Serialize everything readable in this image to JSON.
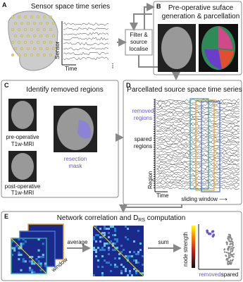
{
  "panel_a": {
    "label": "A",
    "title": "Sensor space time series",
    "y_axis": "Sensor",
    "x_axis": "Time"
  },
  "panel_b": {
    "label": "B",
    "title": [
      "Pre-operative suface",
      "generation & parcellation"
    ]
  },
  "filter_box": [
    "Filter &",
    "source",
    "localise"
  ],
  "panel_c": {
    "label": "C",
    "title": "Identify removed regions",
    "pre_label": [
      "pre-operative",
      "T1w-MRI"
    ],
    "post_label": [
      "post-operative",
      "T1w-MRI"
    ],
    "mask_label": [
      "resection",
      "mask"
    ]
  },
  "panel_d": {
    "label": "D",
    "title": "Parcellated source space time series",
    "removed": [
      "removed",
      "regions"
    ],
    "spared": [
      "spared",
      "regions"
    ],
    "y_axis": "Region",
    "x_axis": "Time",
    "window": "sliding window ⟶"
  },
  "panel_e": {
    "label": "E",
    "title": {
      "main": "Network correlation and D",
      "sub": "RS",
      "rest": " computation"
    },
    "average": "average",
    "sum": "sum",
    "window": "window",
    "y_axis": "node strength",
    "removed": "removed",
    "spared": "spared"
  }
}
